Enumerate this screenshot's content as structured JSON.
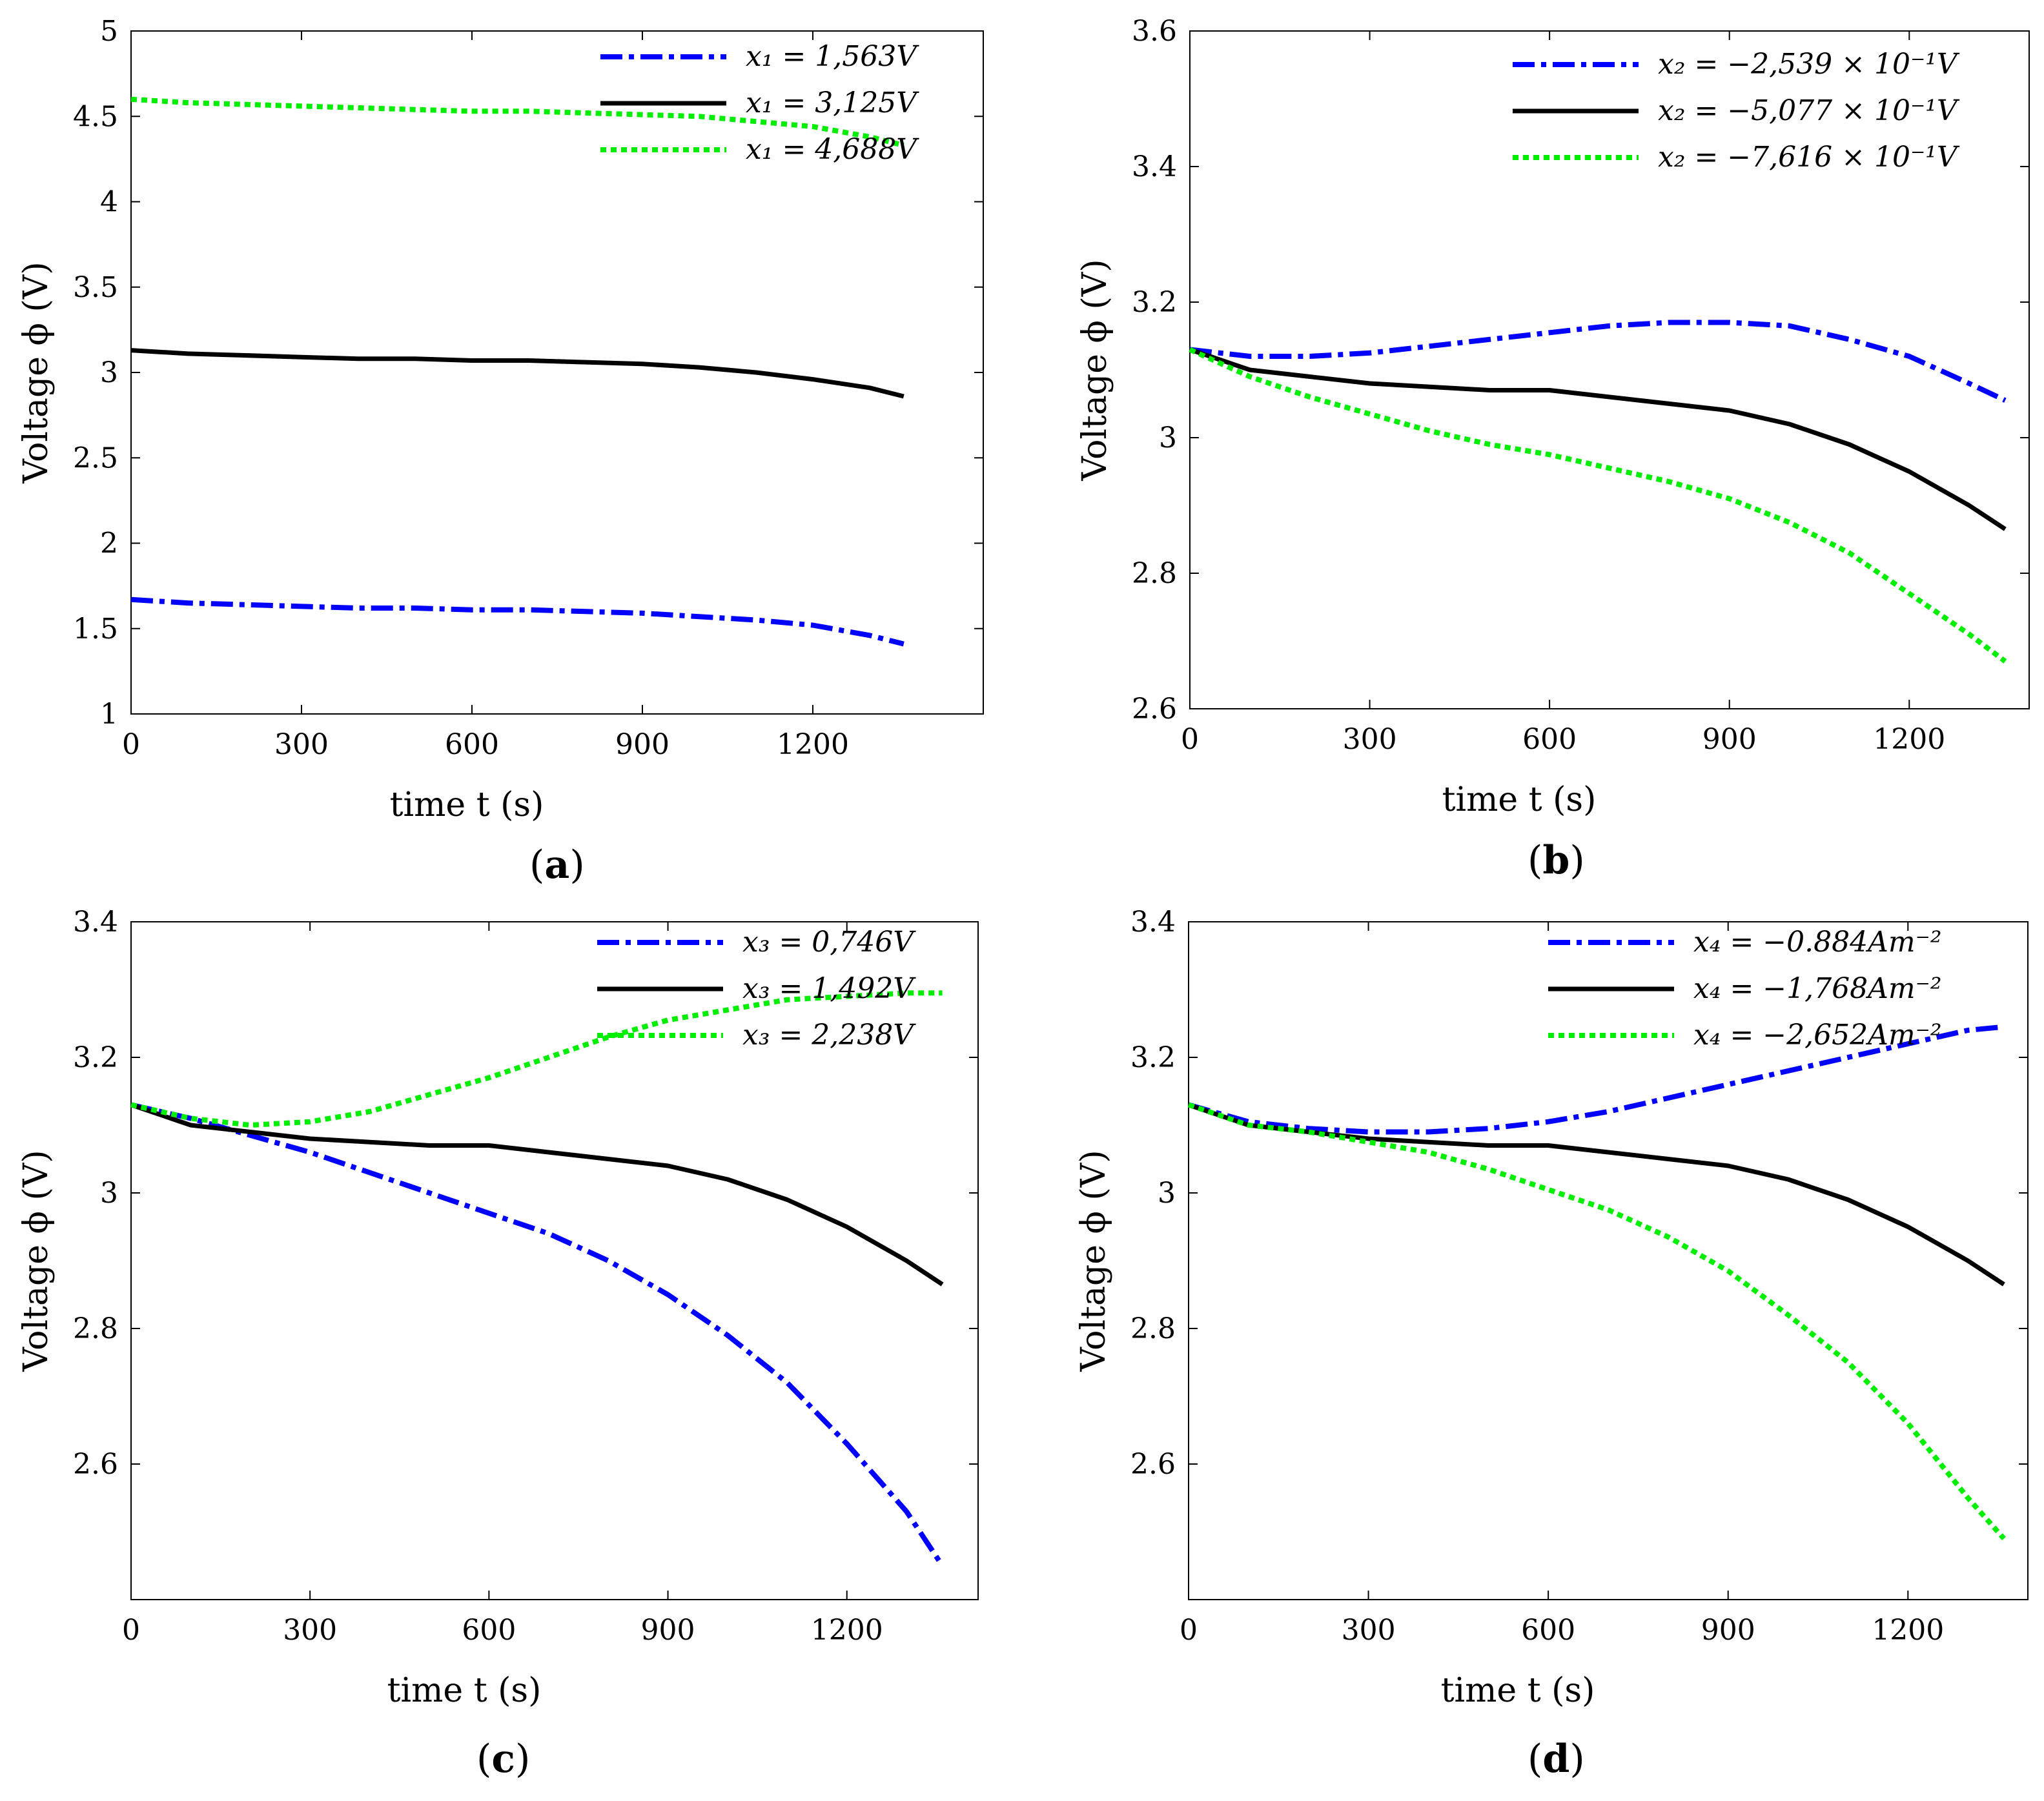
{
  "colors": {
    "blue": "#0000ff",
    "black": "#000000",
    "green": "#00ee00"
  },
  "panels": [
    {
      "id": "a",
      "tag": "a",
      "chart_data": {
        "type": "line",
        "xlabel": "time t (s)",
        "ylabel": "Voltage ϕ (V)",
        "xlim": [
          0,
          1500
        ],
        "ylim": [
          1,
          5
        ],
        "xticks": [
          0,
          300,
          600,
          900,
          1200
        ],
        "yticks": [
          1,
          1.5,
          2,
          2.5,
          3,
          3.5,
          4,
          4.5,
          5
        ],
        "legend_position": "top-right",
        "series": [
          {
            "name": "x₁ = 1,563V",
            "style": "dashdot",
            "color": "#0000ff",
            "x": [
              0,
              100,
              200,
              300,
              400,
              500,
              600,
              700,
              800,
              900,
              1000,
              1100,
              1200,
              1300,
              1360
            ],
            "y": [
              1.67,
              1.65,
              1.64,
              1.63,
              1.62,
              1.62,
              1.61,
              1.61,
              1.6,
              1.59,
              1.57,
              1.55,
              1.52,
              1.46,
              1.41
            ]
          },
          {
            "name": "x₁ = 3,125V",
            "style": "solid",
            "color": "#000000",
            "x": [
              0,
              100,
              200,
              300,
              400,
              500,
              600,
              700,
              800,
              900,
              1000,
              1100,
              1200,
              1300,
              1360
            ],
            "y": [
              3.13,
              3.11,
              3.1,
              3.09,
              3.08,
              3.08,
              3.07,
              3.07,
              3.06,
              3.05,
              3.03,
              3.0,
              2.96,
              2.91,
              2.86
            ]
          },
          {
            "name": "x₁ = 4,688V",
            "style": "dotted",
            "color": "#00ee00",
            "x": [
              0,
              100,
              200,
              300,
              400,
              500,
              600,
              700,
              800,
              900,
              1000,
              1100,
              1200,
              1300,
              1360
            ],
            "y": [
              4.6,
              4.58,
              4.57,
              4.56,
              4.55,
              4.54,
              4.53,
              4.53,
              4.52,
              4.51,
              4.5,
              4.47,
              4.44,
              4.38,
              4.33
            ]
          }
        ]
      }
    },
    {
      "id": "b",
      "tag": "b",
      "chart_data": {
        "type": "line",
        "xlabel": "time t (s)",
        "ylabel": "Voltage ϕ (V)",
        "xlim": [
          0,
          1400
        ],
        "ylim": [
          2.6,
          3.6
        ],
        "xticks": [
          0,
          300,
          600,
          900,
          1200
        ],
        "yticks": [
          2.6,
          2.8,
          3,
          3.2,
          3.4,
          3.6
        ],
        "legend_position": "top-right",
        "series": [
          {
            "name": "x₂ = −2,539 × 10⁻¹V",
            "style": "dashdot",
            "color": "#0000ff",
            "x": [
              0,
              100,
              200,
              300,
              400,
              500,
              600,
              700,
              800,
              900,
              1000,
              1100,
              1200,
              1300,
              1360
            ],
            "y": [
              3.13,
              3.12,
              3.12,
              3.125,
              3.135,
              3.145,
              3.155,
              3.165,
              3.17,
              3.17,
              3.165,
              3.145,
              3.12,
              3.08,
              3.055
            ]
          },
          {
            "name": "x₂ = −5,077 × 10⁻¹V",
            "style": "solid",
            "color": "#000000",
            "x": [
              0,
              100,
              200,
              300,
              400,
              500,
              600,
              700,
              800,
              900,
              1000,
              1100,
              1200,
              1300,
              1360
            ],
            "y": [
              3.13,
              3.1,
              3.09,
              3.08,
              3.075,
              3.07,
              3.07,
              3.06,
              3.05,
              3.04,
              3.02,
              2.99,
              2.95,
              2.9,
              2.865
            ]
          },
          {
            "name": "x₂ = −7,616 × 10⁻¹V",
            "style": "dotted",
            "color": "#00ee00",
            "x": [
              0,
              100,
              200,
              300,
              400,
              500,
              600,
              700,
              800,
              900,
              1000,
              1100,
              1200,
              1300,
              1360
            ],
            "y": [
              3.13,
              3.09,
              3.06,
              3.035,
              3.01,
              2.99,
              2.975,
              2.955,
              2.935,
              2.91,
              2.875,
              2.83,
              2.77,
              2.71,
              2.67
            ]
          }
        ]
      }
    },
    {
      "id": "c",
      "tag": "c",
      "chart_data": {
        "type": "line",
        "xlabel": "time t (s)",
        "ylabel": "Voltage ϕ (V)",
        "xlim": [
          0,
          1420
        ],
        "ylim": [
          2.4,
          3.4
        ],
        "xticks": [
          0,
          300,
          600,
          900,
          1200
        ],
        "yticks": [
          2.6,
          2.8,
          3,
          3.2,
          3.4
        ],
        "legend_position": "top-right",
        "series": [
          {
            "name": "x₃ = 0,746V",
            "style": "dashdot",
            "color": "#0000ff",
            "x": [
              0,
              100,
              200,
              300,
              400,
              500,
              600,
              700,
              800,
              900,
              1000,
              1100,
              1200,
              1300,
              1360
            ],
            "y": [
              3.13,
              3.11,
              3.085,
              3.06,
              3.03,
              3.0,
              2.97,
              2.94,
              2.9,
              2.85,
              2.79,
              2.72,
              2.63,
              2.53,
              2.45
            ]
          },
          {
            "name": "x₃ = 1,492V",
            "style": "solid",
            "color": "#000000",
            "x": [
              0,
              100,
              200,
              300,
              400,
              500,
              600,
              700,
              800,
              900,
              1000,
              1100,
              1200,
              1300,
              1360
            ],
            "y": [
              3.13,
              3.1,
              3.09,
              3.08,
              3.075,
              3.07,
              3.07,
              3.06,
              3.05,
              3.04,
              3.02,
              2.99,
              2.95,
              2.9,
              2.865
            ]
          },
          {
            "name": "x₃ = 2,238V",
            "style": "dotted",
            "color": "#00ee00",
            "x": [
              0,
              100,
              200,
              300,
              400,
              500,
              600,
              700,
              800,
              900,
              1000,
              1100,
              1200,
              1300,
              1360
            ],
            "y": [
              3.13,
              3.11,
              3.1,
              3.105,
              3.12,
              3.145,
              3.17,
              3.2,
              3.23,
              3.255,
              3.27,
              3.285,
              3.29,
              3.295,
              3.295
            ]
          }
        ]
      }
    },
    {
      "id": "d",
      "tag": "d",
      "chart_data": {
        "type": "line",
        "xlabel": "time t (s)",
        "ylabel": "Voltage ϕ (V)",
        "xlim": [
          0,
          1400
        ],
        "ylim": [
          2.4,
          3.4
        ],
        "xticks": [
          0,
          300,
          600,
          900,
          1200
        ],
        "yticks": [
          2.6,
          2.8,
          3,
          3.2,
          3.4
        ],
        "legend_position": "top-right",
        "series": [
          {
            "name": "x₄ = −0.884Am⁻²",
            "style": "dashdot",
            "color": "#0000ff",
            "x": [
              0,
              100,
              200,
              300,
              400,
              500,
              600,
              700,
              800,
              900,
              1000,
              1100,
              1200,
              1300,
              1360
            ],
            "y": [
              3.13,
              3.105,
              3.095,
              3.09,
              3.09,
              3.095,
              3.105,
              3.12,
              3.14,
              3.16,
              3.18,
              3.2,
              3.22,
              3.24,
              3.245
            ]
          },
          {
            "name": "x₄ = −1,768Am⁻²",
            "style": "solid",
            "color": "#000000",
            "x": [
              0,
              100,
              200,
              300,
              400,
              500,
              600,
              700,
              800,
              900,
              1000,
              1100,
              1200,
              1300,
              1360
            ],
            "y": [
              3.13,
              3.1,
              3.09,
              3.08,
              3.075,
              3.07,
              3.07,
              3.06,
              3.05,
              3.04,
              3.02,
              2.99,
              2.95,
              2.9,
              2.865
            ]
          },
          {
            "name": "x₄ = −2,652Am⁻²",
            "style": "dotted",
            "color": "#00ee00",
            "x": [
              0,
              100,
              200,
              300,
              400,
              500,
              600,
              700,
              800,
              900,
              1000,
              1100,
              1200,
              1300,
              1360
            ],
            "y": [
              3.13,
              3.1,
              3.09,
              3.075,
              3.06,
              3.035,
              3.005,
              2.975,
              2.935,
              2.885,
              2.82,
              2.75,
              2.66,
              2.55,
              2.49
            ]
          }
        ]
      }
    }
  ]
}
